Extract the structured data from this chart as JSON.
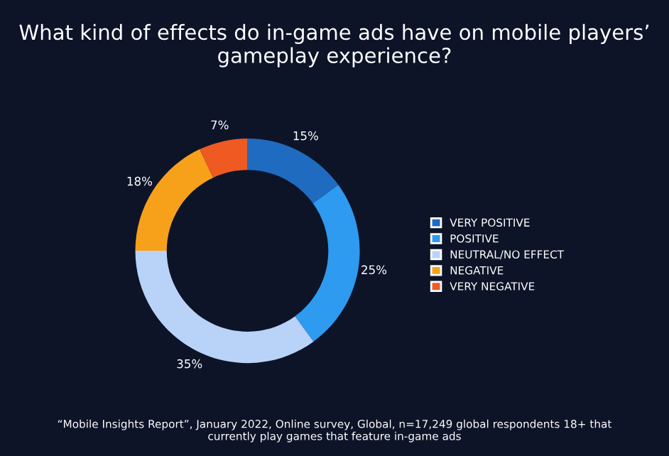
{
  "chart_data": {
    "type": "donut",
    "title": "What kind of effects do in-game ads have on mobile players’ gameplay experience?",
    "categories": [
      "VERY POSITIVE",
      "POSITIVE",
      "NEUTRAL/NO EFFECT",
      "NEGATIVE",
      "VERY NEGATIVE"
    ],
    "values": [
      15,
      25,
      35,
      18,
      7
    ],
    "value_labels": [
      "15%",
      "25%",
      "35%",
      "18%",
      "7%"
    ],
    "colors": [
      "#1f6bbf",
      "#2e9af0",
      "#b9d3f8",
      "#f7a11a",
      "#ef5a22"
    ],
    "legend": "right",
    "annotations": [
      "“Mobile Insights Report”, January 2022, Online survey, Global, n=17,249 global respondents 18+ that currently play games that feature in-game ads"
    ]
  }
}
